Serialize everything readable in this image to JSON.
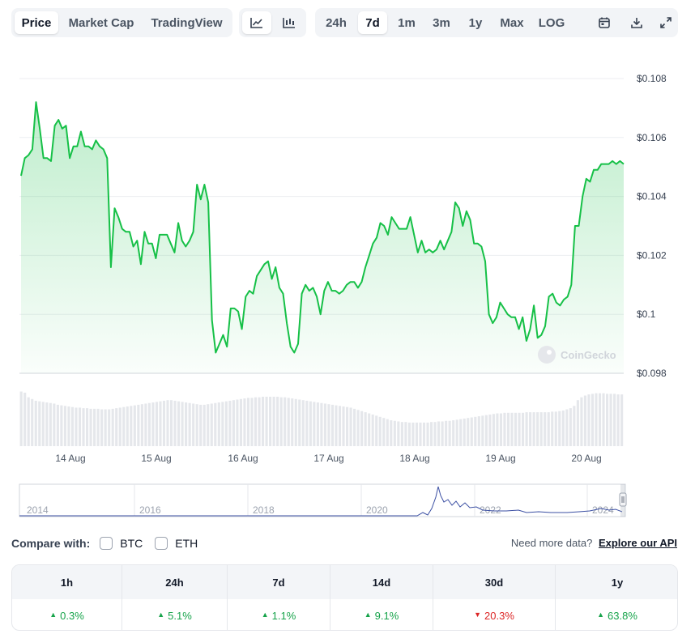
{
  "tabs": [
    {
      "label": "Price",
      "active": true
    },
    {
      "label": "Market Cap",
      "active": false
    },
    {
      "label": "TradingView",
      "active": false
    }
  ],
  "chart_type_buttons": [
    {
      "icon": "line-chart-icon",
      "active": true
    },
    {
      "icon": "candlestick-chart-icon",
      "active": false
    }
  ],
  "ranges": [
    {
      "label": "24h",
      "active": false
    },
    {
      "label": "7d",
      "active": true
    },
    {
      "label": "1m",
      "active": false
    },
    {
      "label": "3m",
      "active": false
    },
    {
      "label": "1y",
      "active": false
    },
    {
      "label": "Max",
      "active": false
    },
    {
      "label": "LOG",
      "active": false
    }
  ],
  "tool_icons": [
    "calendar-icon",
    "download-icon",
    "expand-icon"
  ],
  "colors": {
    "line": "#16c047",
    "fill": "#16c047",
    "volume": "#e5e7eb",
    "navigator_line": "#3b4fa3",
    "up": "#16a34a",
    "down": "#dc2626"
  },
  "chart_data": {
    "type": "area",
    "y_ticks": [
      "$0.108",
      "$0.106",
      "$0.104",
      "$0.102",
      "$0.1",
      "$0.098"
    ],
    "ylim": [
      0.098,
      0.108
    ],
    "x_ticks": [
      "14 Aug",
      "15 Aug",
      "16 Aug",
      "17 Aug",
      "18 Aug",
      "19 Aug",
      "20 Aug"
    ],
    "watermark": "CoinGecko",
    "values": [
      0.1047,
      0.1053,
      0.1054,
      0.1056,
      0.1072,
      0.1063,
      0.1053,
      0.1053,
      0.1052,
      0.1064,
      0.1066,
      0.1063,
      0.1064,
      0.1053,
      0.1057,
      0.1057,
      0.1062,
      0.1057,
      0.1057,
      0.1056,
      0.1059,
      0.1057,
      0.1056,
      0.1053,
      0.1016,
      0.1036,
      0.1033,
      0.1029,
      0.1028,
      0.1028,
      0.1023,
      0.1025,
      0.1017,
      0.1028,
      0.1024,
      0.1024,
      0.1019,
      0.1027,
      0.1027,
      0.1027,
      0.1024,
      0.1021,
      0.1031,
      0.1025,
      0.1023,
      0.1025,
      0.1028,
      0.1044,
      0.1039,
      0.1044,
      0.1038,
      0.0998,
      0.0987,
      0.099,
      0.0993,
      0.0989,
      0.1002,
      0.1002,
      0.1001,
      0.0995,
      0.1006,
      0.1008,
      0.1007,
      0.1013,
      0.1015,
      0.1017,
      0.1018,
      0.1012,
      0.1016,
      0.1009,
      0.1007,
      0.0997,
      0.0989,
      0.0987,
      0.099,
      0.1007,
      0.101,
      0.1008,
      0.1009,
      0.1006,
      0.1,
      0.1008,
      0.1011,
      0.1008,
      0.1008,
      0.1007,
      0.1008,
      0.101,
      0.1011,
      0.1011,
      0.1009,
      0.1011,
      0.1016,
      0.102,
      0.1024,
      0.1026,
      0.1031,
      0.103,
      0.1027,
      0.1033,
      0.1031,
      0.1029,
      0.1029,
      0.1029,
      0.1033,
      0.1027,
      0.1021,
      0.1025,
      0.1021,
      0.1022,
      0.1021,
      0.1022,
      0.1025,
      0.1022,
      0.1025,
      0.1028,
      0.1038,
      0.1036,
      0.103,
      0.1035,
      0.1032,
      0.1024,
      0.1024,
      0.1023,
      0.1018,
      0.1,
      0.0997,
      0.0999,
      0.1004,
      0.1002,
      0.1,
      0.0999,
      0.0999,
      0.0995,
      0.0999,
      0.0991,
      0.0995,
      0.1003,
      0.0992,
      0.0993,
      0.0996,
      0.1006,
      0.1007,
      0.1004,
      0.1003,
      0.1005,
      0.1006,
      0.101,
      0.103,
      0.103,
      0.104,
      0.1046,
      0.1045,
      0.1049,
      0.1049,
      0.1051,
      0.1051,
      0.1051,
      0.1052,
      0.1051,
      0.1052,
      0.1051
    ],
    "volume_relative": [
      0.95,
      0.93,
      0.85,
      0.82,
      0.79,
      0.78,
      0.77,
      0.76,
      0.75,
      0.74,
      0.72,
      0.71,
      0.7,
      0.69,
      0.68,
      0.67,
      0.67,
      0.66,
      0.66,
      0.65,
      0.65,
      0.65,
      0.64,
      0.64,
      0.64,
      0.65,
      0.66,
      0.67,
      0.68,
      0.69,
      0.7,
      0.71,
      0.72,
      0.73,
      0.74,
      0.75,
      0.76,
      0.77,
      0.78,
      0.79,
      0.8,
      0.8,
      0.79,
      0.78,
      0.77,
      0.76,
      0.75,
      0.74,
      0.73,
      0.72,
      0.72,
      0.73,
      0.74,
      0.75,
      0.76,
      0.77,
      0.78,
      0.79,
      0.8,
      0.81,
      0.82,
      0.83,
      0.84,
      0.84,
      0.85,
      0.85,
      0.86,
      0.86,
      0.86,
      0.86,
      0.86,
      0.85,
      0.85,
      0.84,
      0.83,
      0.82,
      0.81,
      0.8,
      0.79,
      0.78,
      0.77,
      0.76,
      0.75,
      0.74,
      0.73,
      0.72,
      0.71,
      0.7,
      0.69,
      0.68,
      0.67,
      0.65,
      0.63,
      0.61,
      0.59,
      0.57,
      0.55,
      0.53,
      0.51,
      0.49,
      0.47,
      0.45,
      0.44,
      0.43,
      0.42,
      0.42,
      0.41,
      0.41,
      0.41,
      0.41,
      0.41,
      0.41,
      0.42,
      0.42,
      0.43,
      0.43,
      0.44,
      0.44,
      0.45,
      0.46,
      0.47,
      0.48,
      0.49,
      0.5,
      0.51,
      0.52,
      0.53,
      0.54,
      0.55,
      0.56,
      0.57,
      0.57,
      0.58,
      0.58,
      0.58,
      0.58,
      0.58,
      0.58,
      0.59,
      0.59,
      0.59,
      0.59,
      0.59,
      0.59,
      0.59,
      0.6,
      0.6,
      0.61,
      0.62,
      0.64,
      0.66,
      0.7,
      0.8,
      0.85,
      0.88,
      0.9,
      0.91,
      0.92,
      0.92,
      0.92,
      0.91,
      0.91,
      0.91,
      0.9,
      0.9
    ]
  },
  "navigator": {
    "year_labels": [
      "2014",
      "2016",
      "2018",
      "2020",
      "2022",
      "2024"
    ]
  },
  "compare": {
    "label": "Compare with:",
    "options": [
      {
        "label": "BTC",
        "checked": false
      },
      {
        "label": "ETH",
        "checked": false
      }
    ]
  },
  "more_data": {
    "text": "Need more data?",
    "link": "Explore our API"
  },
  "stats": [
    {
      "period": "1h",
      "value": "0.3%",
      "dir": "up"
    },
    {
      "period": "24h",
      "value": "5.1%",
      "dir": "up"
    },
    {
      "period": "7d",
      "value": "1.1%",
      "dir": "up"
    },
    {
      "period": "14d",
      "value": "9.1%",
      "dir": "up"
    },
    {
      "period": "30d",
      "value": "20.3%",
      "dir": "down"
    },
    {
      "period": "1y",
      "value": "63.8%",
      "dir": "up"
    }
  ]
}
